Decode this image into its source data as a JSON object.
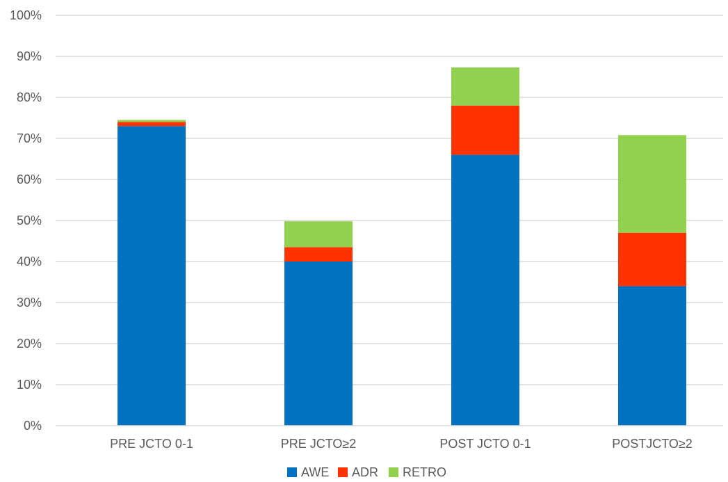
{
  "chart_data": {
    "type": "bar",
    "stacked": true,
    "categories": [
      "PRE JCTO 0-1",
      "PRE JCTO≥2",
      "POST JCTO 0-1",
      "POSTJCTO≥2"
    ],
    "series": [
      {
        "name": "AWE",
        "color": "#0070C0",
        "values": [
          73.0,
          40.0,
          66.0,
          34.0
        ]
      },
      {
        "name": "ADR",
        "color": "#FF3300",
        "values": [
          1.0,
          3.5,
          12.0,
          13.0
        ]
      },
      {
        "name": "RETRO",
        "color": "#92D050",
        "values": [
          0.5,
          6.3,
          9.3,
          23.8
        ]
      }
    ],
    "y_ticks": [
      "0%",
      "10%",
      "20%",
      "30%",
      "40%",
      "50%",
      "60%",
      "70%",
      "80%",
      "90%",
      "100%"
    ],
    "ylim": [
      0,
      100
    ],
    "y_unit": "%",
    "grid": true,
    "legend_position": "bottom"
  }
}
